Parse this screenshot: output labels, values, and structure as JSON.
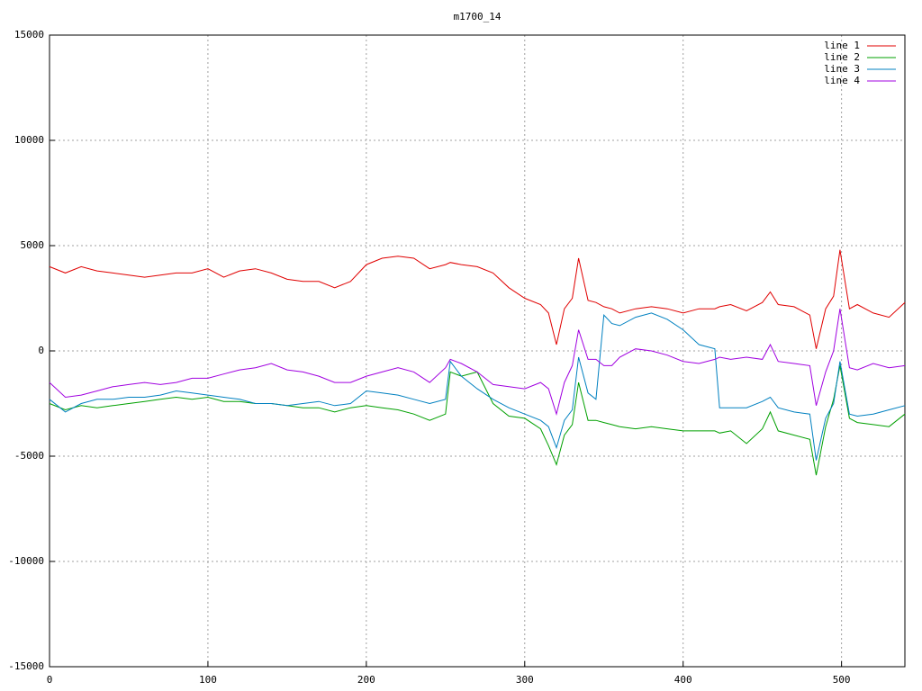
{
  "chart_data": {
    "type": "line",
    "title": "m1700_14",
    "x": [
      0,
      10,
      20,
      30,
      40,
      50,
      60,
      70,
      80,
      90,
      100,
      110,
      120,
      130,
      140,
      150,
      160,
      170,
      180,
      190,
      200,
      210,
      220,
      230,
      240,
      250,
      253,
      260,
      270,
      280,
      290,
      300,
      310,
      315,
      320,
      325,
      330,
      334,
      340,
      345,
      350,
      355,
      360,
      370,
      380,
      390,
      400,
      410,
      420,
      423,
      430,
      440,
      450,
      455,
      460,
      470,
      480,
      484,
      490,
      495,
      499,
      505,
      510,
      520,
      530,
      540
    ],
    "series": [
      {
        "name": "line 1",
        "color": "#e00000",
        "values": [
          4000,
          3700,
          4000,
          3800,
          3700,
          3600,
          3500,
          3600,
          3700,
          3700,
          3900,
          3500,
          3800,
          3900,
          3700,
          3400,
          3300,
          3300,
          3000,
          3300,
          4100,
          4400,
          4500,
          4400,
          3900,
          4100,
          4200,
          4100,
          4000,
          3700,
          3000,
          2500,
          2200,
          1800,
          300,
          2000,
          2500,
          4400,
          2400,
          2300,
          2100,
          2000,
          1800,
          2000,
          2100,
          2000,
          1800,
          2000,
          2000,
          2100,
          2200,
          1900,
          2300,
          2800,
          2200,
          2100,
          1700,
          100,
          2000,
          2600,
          4800,
          2000,
          2200,
          1800,
          1600,
          2300
        ]
      },
      {
        "name": "line 2",
        "color": "#00a000",
        "values": [
          -2500,
          -2800,
          -2600,
          -2700,
          -2600,
          -2500,
          -2400,
          -2300,
          -2200,
          -2300,
          -2200,
          -2400,
          -2400,
          -2500,
          -2500,
          -2600,
          -2700,
          -2700,
          -2900,
          -2700,
          -2600,
          -2700,
          -2800,
          -3000,
          -3300,
          -3000,
          -1000,
          -1200,
          -1000,
          -2500,
          -3100,
          -3200,
          -3700,
          -4500,
          -5400,
          -4000,
          -3500,
          -1500,
          -3300,
          -3300,
          -3400,
          -3500,
          -3600,
          -3700,
          -3600,
          -3700,
          -3800,
          -3800,
          -3800,
          -3900,
          -3800,
          -4400,
          -3700,
          -2900,
          -3800,
          -4000,
          -4200,
          -5900,
          -3600,
          -2300,
          -700,
          -3200,
          -3400,
          -3500,
          -3600,
          -3000
        ]
      },
      {
        "name": "line 3",
        "color": "#0080c0",
        "values": [
          -2300,
          -2900,
          -2500,
          -2300,
          -2300,
          -2200,
          -2200,
          -2100,
          -1900,
          -2000,
          -2100,
          -2200,
          -2300,
          -2500,
          -2500,
          -2600,
          -2500,
          -2400,
          -2600,
          -2500,
          -1900,
          -2000,
          -2100,
          -2300,
          -2500,
          -2300,
          -500,
          -1200,
          -1800,
          -2300,
          -2700,
          -3000,
          -3300,
          -3600,
          -4600,
          -3300,
          -2800,
          -300,
          -2000,
          -2300,
          1700,
          1300,
          1200,
          1600,
          1800,
          1500,
          1000,
          300,
          100,
          -2700,
          -2700,
          -2700,
          -2400,
          -2200,
          -2700,
          -2900,
          -3000,
          -5200,
          -3200,
          -2500,
          -500,
          -3000,
          -3100,
          -3000,
          -2800,
          -2600
        ]
      },
      {
        "name": "line 4",
        "color": "#a000e0",
        "values": [
          -1500,
          -2200,
          -2100,
          -1900,
          -1700,
          -1600,
          -1500,
          -1600,
          -1500,
          -1300,
          -1300,
          -1100,
          -900,
          -800,
          -600,
          -900,
          -1000,
          -1200,
          -1500,
          -1500,
          -1200,
          -1000,
          -800,
          -1000,
          -1500,
          -800,
          -400,
          -600,
          -1000,
          -1600,
          -1700,
          -1800,
          -1500,
          -1800,
          -3000,
          -1500,
          -700,
          1000,
          -400,
          -400,
          -700,
          -700,
          -300,
          100,
          0,
          -200,
          -500,
          -600,
          -400,
          -300,
          -400,
          -300,
          -400,
          300,
          -500,
          -600,
          -700,
          -2600,
          -1000,
          0,
          2000,
          -800,
          -900,
          -600,
          -800,
          -700
        ]
      }
    ],
    "xlim": [
      0,
      540
    ],
    "xticks": [
      0,
      100,
      200,
      300,
      400,
      500
    ],
    "ylim": [
      -15000,
      15000
    ],
    "yticks": [
      -15000,
      -10000,
      -5000,
      0,
      5000,
      10000,
      15000
    ],
    "grid": true,
    "legend": "top-right"
  }
}
